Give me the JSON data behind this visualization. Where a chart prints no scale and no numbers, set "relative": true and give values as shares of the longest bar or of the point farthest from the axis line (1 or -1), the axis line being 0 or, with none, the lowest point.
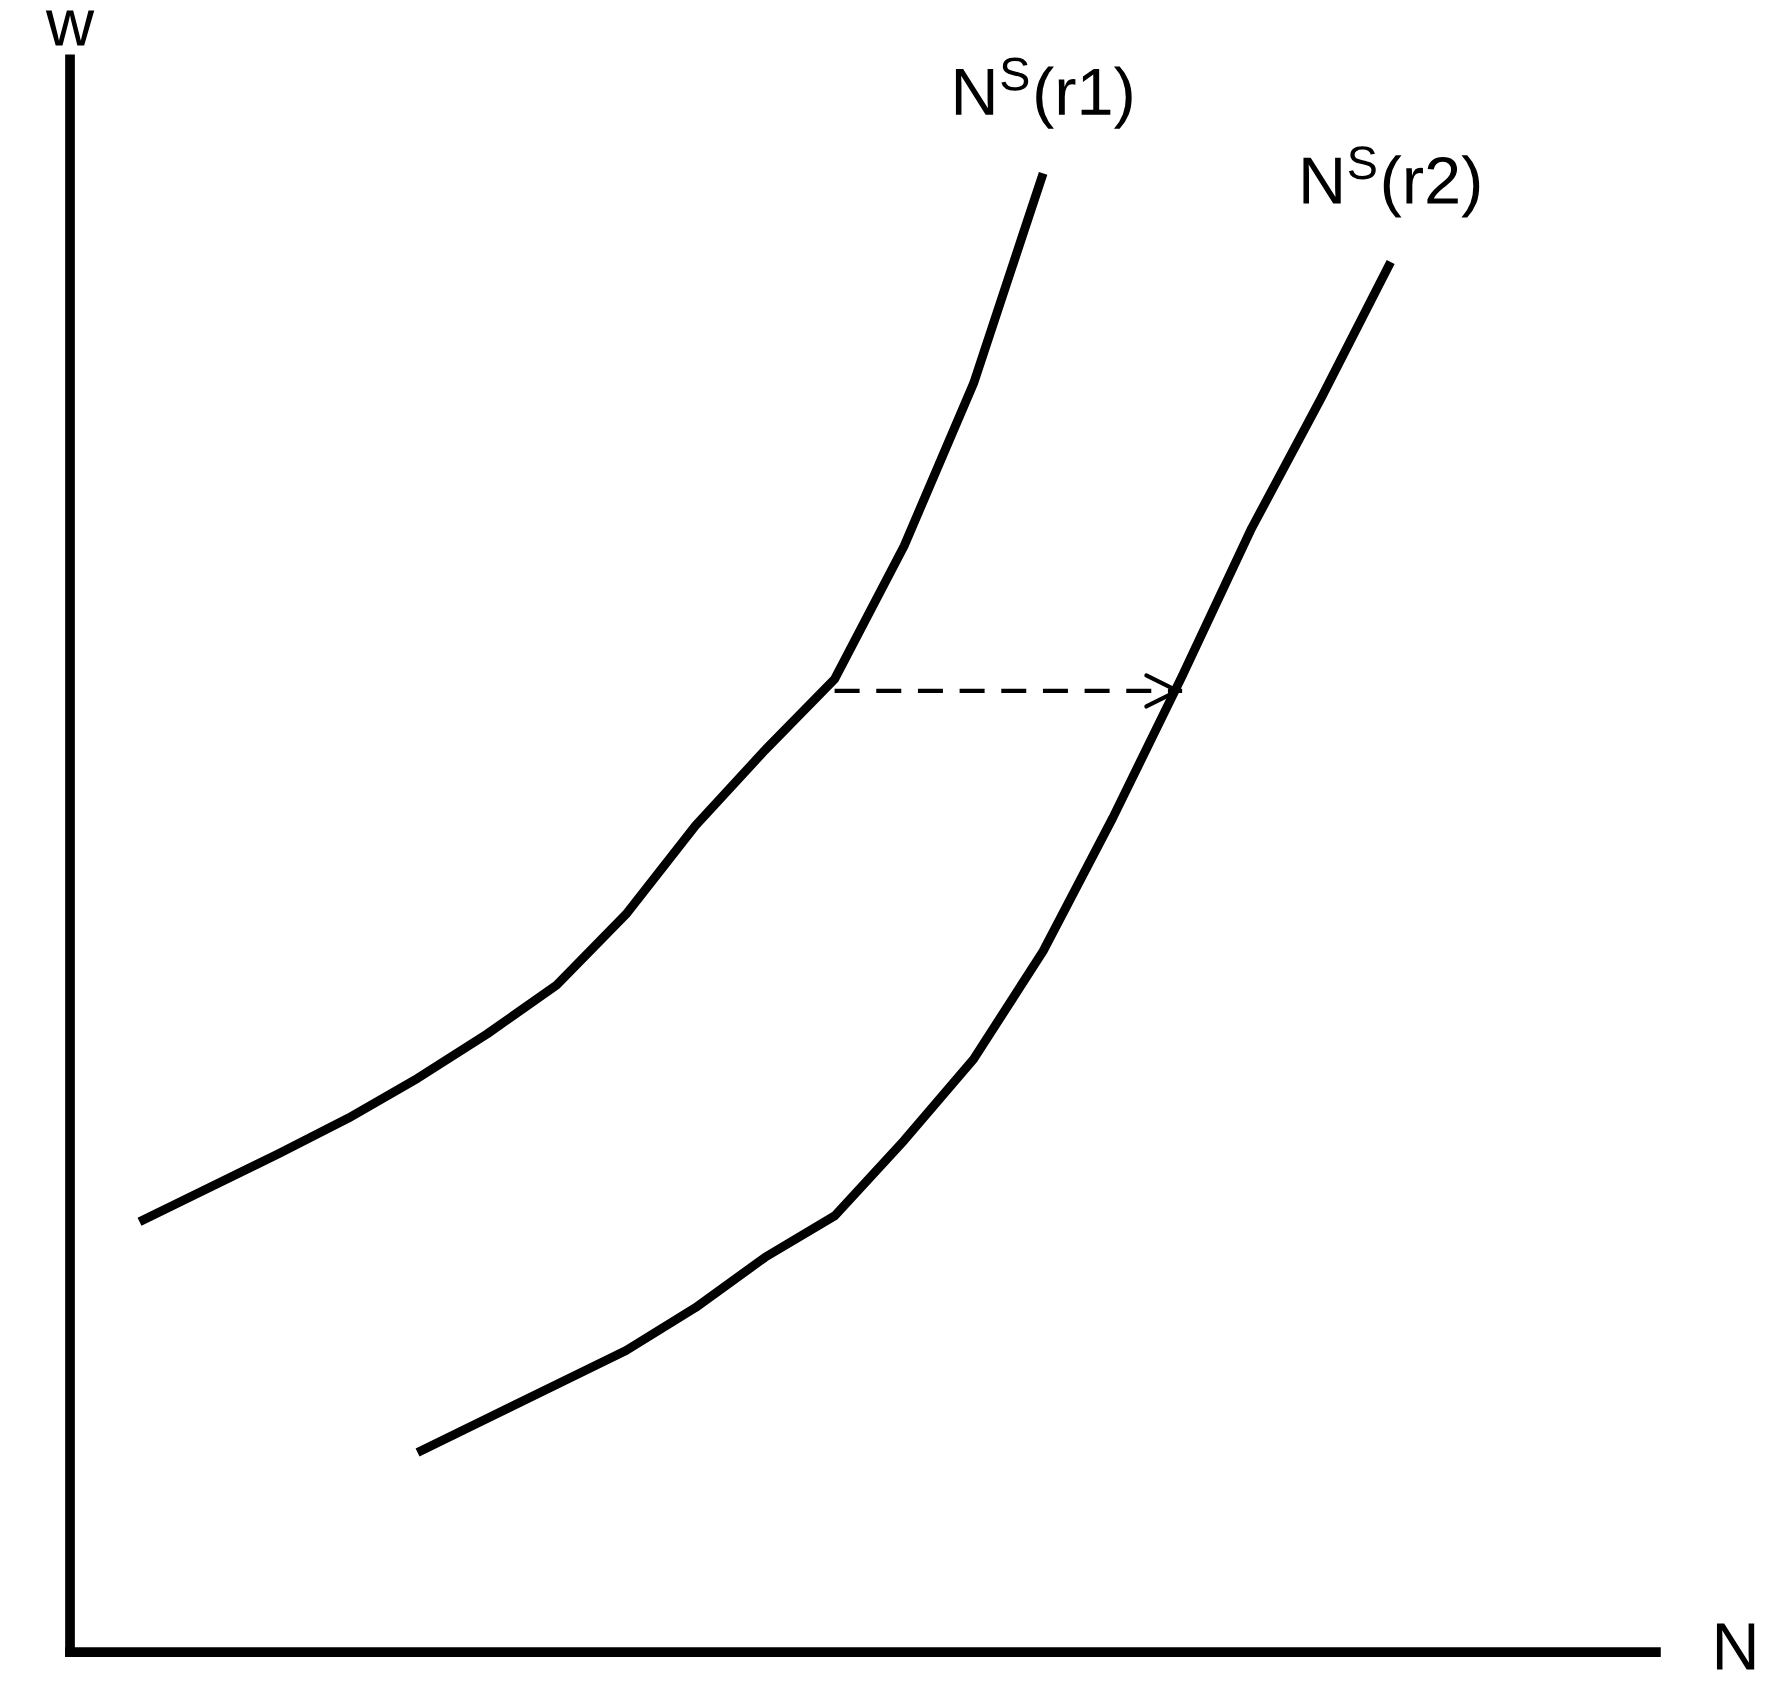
{
  "chart_data": {
    "type": "line",
    "relative": true,
    "xlabel": "N",
    "ylabel": "w",
    "categories": [
      null,
      null,
      null,
      null,
      null,
      null,
      null,
      null,
      null,
      null,
      null,
      null,
      null,
      null,
      null,
      null,
      null,
      null,
      null
    ],
    "series": [
      {
        "name": "N$^{S}$(r1)",
        "color": "#000000",
        "line_style": "solid",
        "values": [
          0.291,
          0.314,
          0.337,
          0.361,
          0.388,
          0.418,
          0.451,
          0.499,
          0.559,
          0.61,
          0.658,
          0.748,
          0.858,
          1.0,
          null,
          null,
          null,
          null,
          null
        ]
      },
      {
        "name": "N$^{S}$(r2)",
        "color": "#000000",
        "line_style": "solid",
        "values": [
          null,
          null,
          null,
          null,
          0.135,
          0.158,
          0.181,
          0.204,
          0.233,
          0.267,
          0.295,
          0.346,
          0.401,
          0.474,
          0.564,
          0.66,
          0.76,
          0.848,
          0.94
        ]
      },
      {
        "color": "#000000",
        "line_style": "dashed",
        "values": [
          null,
          null,
          null,
          null,
          null,
          null,
          null,
          null,
          null,
          null,
          0.65,
          0.65,
          0.65,
          0.65,
          0.65,
          0.65,
          null,
          null,
          null
        ]
      }
    ]
  }
}
